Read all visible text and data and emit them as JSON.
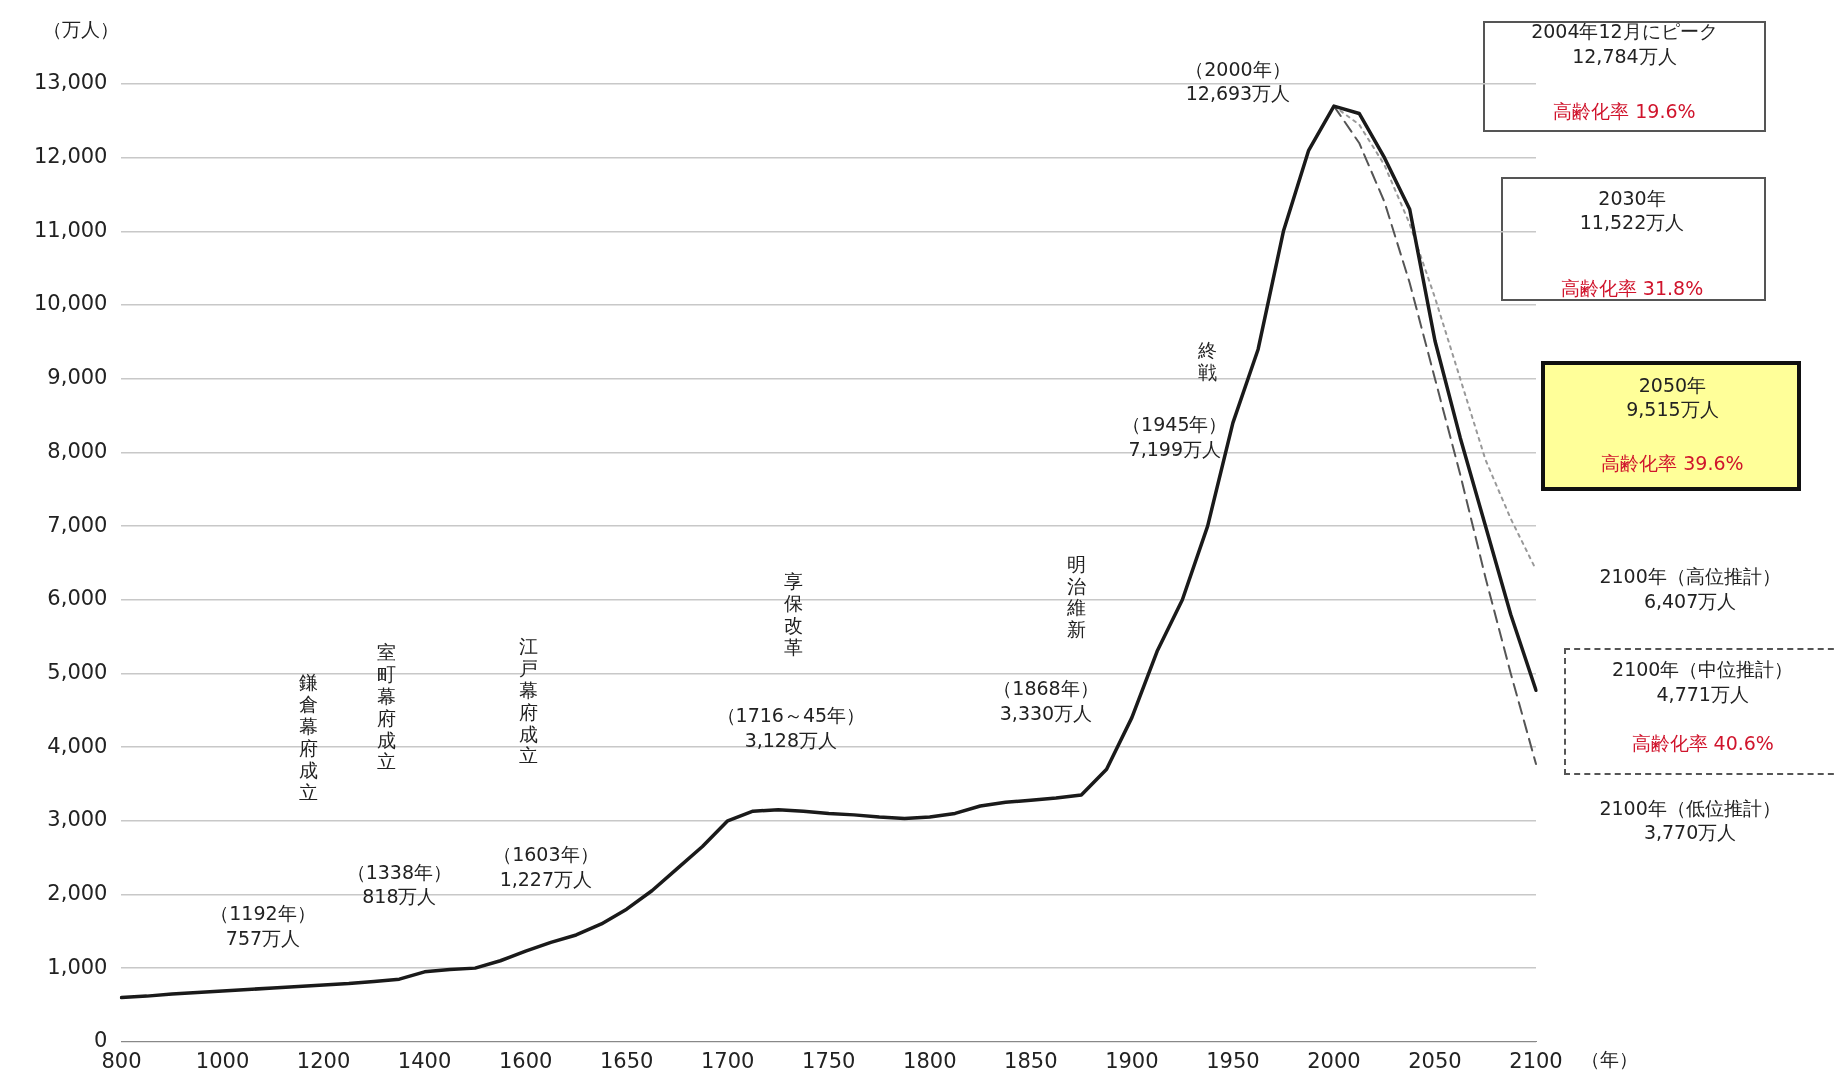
{
  "chart_data": {
    "type": "line",
    "xlabel": "（年）",
    "ylabel": "（万人）",
    "categories": [
      "800",
      null,
      null,
      null,
      "1000",
      null,
      null,
      null,
      "1200",
      null,
      null,
      null,
      "1400",
      null,
      null,
      null,
      "1600",
      null,
      null,
      null,
      "1650",
      null,
      null,
      null,
      "1700",
      null,
      null,
      null,
      "1750",
      null,
      null,
      null,
      "1800",
      null,
      null,
      null,
      "1850",
      null,
      null,
      null,
      "1900",
      null,
      null,
      null,
      "1950",
      null,
      null,
      null,
      "2000",
      null,
      null,
      null,
      "2050",
      null,
      null,
      null,
      "2100"
    ],
    "series": [
      {
        "color": "#1a1a1a",
        "line_style": "solid",
        "values": [
          600,
          620,
          650,
          670,
          690,
          710,
          730,
          750,
          770,
          790,
          820,
          850,
          950,
          980,
          1000,
          1100,
          1230,
          1350,
          1450,
          1600,
          1800,
          2050,
          2350,
          2650,
          3000,
          3130,
          3150,
          3130,
          3100,
          3080,
          3050,
          3030,
          3050,
          3100,
          3200,
          3250,
          3280,
          3310,
          3350,
          3700,
          4400,
          5300,
          6000,
          7000,
          8400,
          9400,
          11000,
          12100,
          12700,
          12600,
          12000,
          11300,
          9515,
          8200,
          7000,
          5800,
          4771
        ]
      },
      {
        "color": "#555555",
        "line_style": "dashed",
        "values": [
          null,
          null,
          null,
          null,
          null,
          null,
          null,
          null,
          null,
          null,
          null,
          null,
          null,
          null,
          null,
          null,
          null,
          null,
          null,
          null,
          null,
          null,
          null,
          null,
          null,
          null,
          null,
          null,
          null,
          null,
          null,
          null,
          null,
          null,
          null,
          null,
          null,
          null,
          null,
          null,
          null,
          null,
          null,
          null,
          null,
          null,
          null,
          null,
          12700,
          12200,
          11400,
          10300,
          9000,
          7700,
          6300,
          5000,
          3770
        ]
      },
      {
        "color": "#999999",
        "line_style": "dotted",
        "values": [
          null,
          null,
          null,
          null,
          null,
          null,
          null,
          null,
          null,
          null,
          null,
          null,
          null,
          null,
          null,
          null,
          null,
          null,
          null,
          null,
          null,
          null,
          null,
          null,
          null,
          null,
          null,
          null,
          null,
          null,
          null,
          null,
          null,
          null,
          null,
          null,
          null,
          null,
          null,
          null,
          null,
          null,
          null,
          null,
          null,
          null,
          null,
          null,
          12700,
          12450,
          11900,
          11100,
          10100,
          9000,
          7900,
          7100,
          6407
        ]
      }
    ],
    "ylim": [
      0,
      13000
    ],
    "yticks": [
      0,
      {
        "value": 1000,
        "label": "1,000"
      },
      {
        "value": 2000,
        "label": "2,000"
      },
      {
        "value": 3000,
        "label": "3,000"
      },
      {
        "value": 4000,
        "label": "4,000"
      },
      {
        "value": 5000,
        "label": "5,000"
      },
      {
        "value": 6000,
        "label": "6,000"
      },
      {
        "value": 7000,
        "label": "7,000"
      },
      {
        "value": 8000,
        "label": "8,000"
      },
      {
        "value": 9000,
        "label": "9,000"
      },
      {
        "value": 10000,
        "label": "10,000"
      },
      {
        "value": 11000,
        "label": "11,000"
      },
      {
        "value": 12000,
        "label": "12,000"
      },
      {
        "value": 13000,
        "label": "13,000"
      }
    ],
    "grid": "y",
    "annotations": [
      "鎌倉幕府成立",
      "（1192年）\n757万人",
      "室町幕府成立",
      "（1338年）\n818万人",
      "江戸幕府成立",
      "（1603年）\n1,227万人",
      "享保改革",
      "（1716～45年）\n3,128万人",
      "明治維新",
      "（1868年）\n3,330万人",
      "終戦",
      "（1945年）\n7,199万人",
      "（2000年）\n12,693万人",
      "2004年12月にピーク\n12,784万人",
      "高齢化率 19.6%",
      "2030年\n11,522万人",
      "高齢化率 31.8%",
      "2050年\n9,515万人",
      "高齢化率 39.6%",
      "2100年（高位推計）\n6,407万人",
      "2100年（中位推計）\n4,771万人",
      "高齢化率 40.6%",
      "2100年（低位推計）\n3,770万人"
    ]
  }
}
